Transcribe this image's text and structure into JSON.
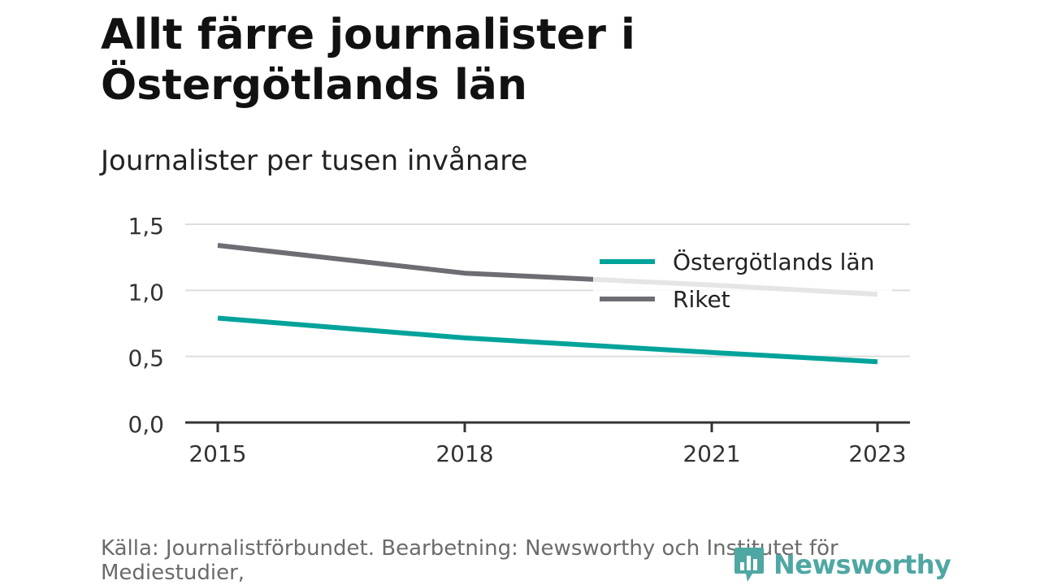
{
  "title": "Allt färre journalister i Östergötlands län",
  "subtitle": "Journalister per tusen invånare",
  "source": "Källa: Journalistförbundet. Bearbetning: Newsworthy och Institutet för Mediestudier,",
  "brand": {
    "name": "Newsworthy",
    "icon": "newsworthy-logo-icon",
    "color": "#4fa7a3"
  },
  "chart_data": {
    "type": "line",
    "x": [
      2015,
      2018,
      2021,
      2023
    ],
    "xticks": [
      "2015",
      "2018",
      "2021",
      "2023"
    ],
    "ylim": [
      0,
      1.5
    ],
    "yticks": [
      "0,0",
      "0,5",
      "1,0",
      "1,5"
    ],
    "grid": true,
    "legend": "top-right",
    "series": [
      {
        "name": "Östergötlands län",
        "color": "#00a39a",
        "x": [
          2015,
          2018,
          2021,
          2023
        ],
        "values": [
          0.79,
          0.64,
          0.53,
          0.46
        ]
      },
      {
        "name": "Riket",
        "color": "#6e6d74",
        "x": [
          2015,
          2018,
          2021,
          2023
        ],
        "values": [
          1.34,
          1.13,
          1.04,
          0.97
        ]
      }
    ]
  }
}
